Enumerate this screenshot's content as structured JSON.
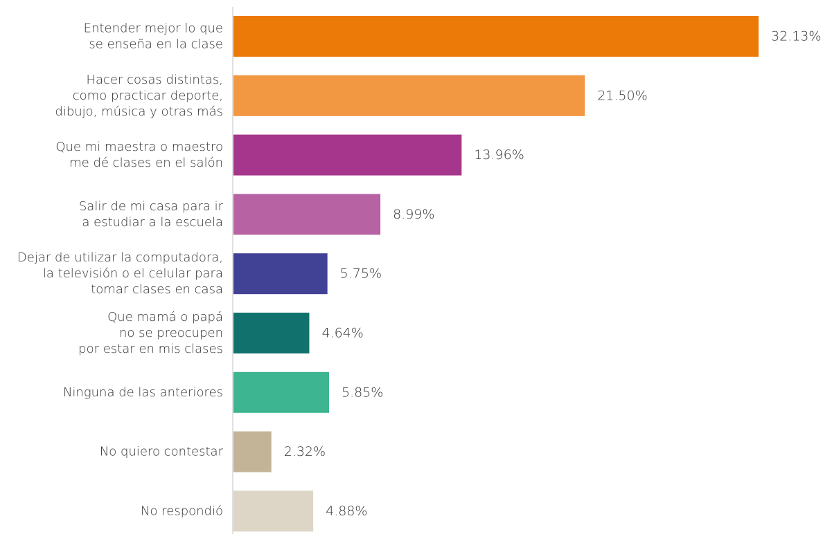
{
  "chart_data": {
    "type": "bar",
    "orientation": "horizontal",
    "categories": [
      [
        "Entender mejor lo que",
        "se enseña en la clase"
      ],
      [
        "Hacer cosas distintas,",
        "como practicar deporte,",
        "dibujo, música y otras más"
      ],
      [
        "Que mi maestra o maestro",
        "me dé clases en el salón"
      ],
      [
        "Salir de mi casa para ir",
        "a estudiar a la escuela"
      ],
      [
        "Dejar de utilizar la computadora,",
        "la televisión o el celular para",
        "tomar clases en casa"
      ],
      [
        "Que mamá o papá",
        "no se preocupen",
        "por estar en mis clases"
      ],
      [
        "Ninguna de las anteriores"
      ],
      [
        "No quiero contestar"
      ],
      [
        "No respondió"
      ]
    ],
    "values": [
      32.13,
      21.5,
      13.96,
      8.99,
      5.75,
      4.64,
      5.85,
      2.32,
      4.88
    ],
    "value_labels": [
      "32.13%",
      "21.50%",
      "13.96%",
      "8.99%",
      "5.75%",
      "4.64%",
      "5.85%",
      "2.32%",
      "4.88%"
    ],
    "colors": [
      "#ec7a08",
      "#f29843",
      "#a5368b",
      "#b762a3",
      "#414195",
      "#11726d",
      "#3cb590",
      "#c4b497",
      "#ddd6c6"
    ],
    "xlim": [
      0,
      32.13
    ],
    "grid": false,
    "legend": "none",
    "title": "",
    "xlabel": "",
    "ylabel": ""
  }
}
